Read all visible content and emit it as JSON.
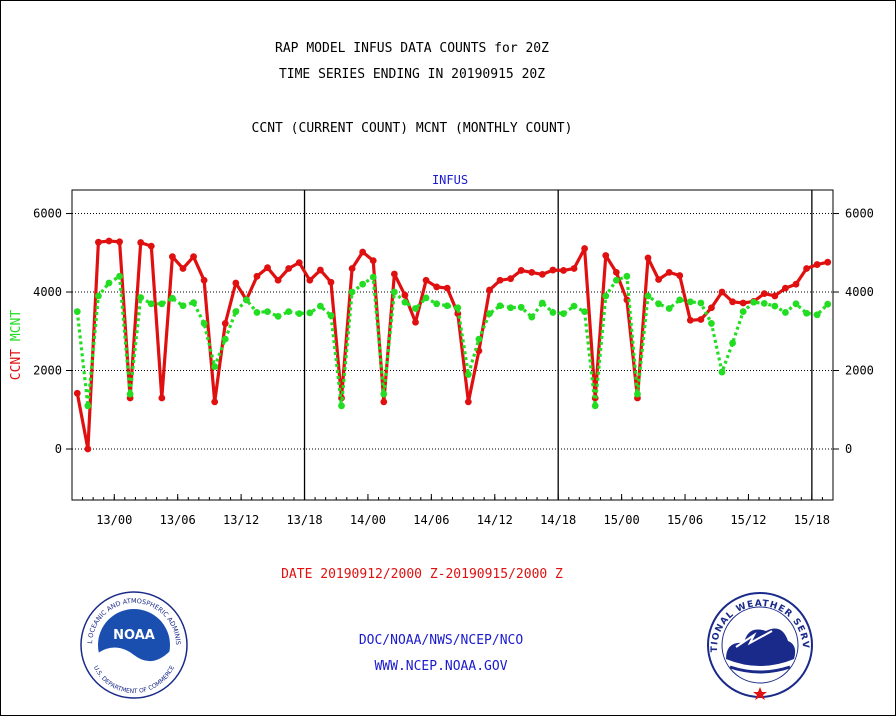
{
  "chart_data": {
    "type": "line",
    "title_lines": [
      "RAP MODEL INFUS DATA COUNTS for 20Z",
      "TIME SERIES ENDING IN 20190915 20Z"
    ],
    "subtitle": "CCNT (CURRENT COUNT) MCNT (MONTHLY COUNT)",
    "panel_label": "INFUS",
    "ylabel_parts": [
      {
        "text": "CCNT",
        "color": "#e01010"
      },
      {
        "text": "MCNT",
        "color": "#22dd22"
      }
    ],
    "xlabel": "DATE 20190912/2000 Z-20190915/2000 Z",
    "x_tick_labels": [
      "13/00",
      "13/06",
      "13/12",
      "13/18",
      "14/00",
      "14/06",
      "14/12",
      "14/18",
      "15/00",
      "15/06",
      "15/12",
      "15/18"
    ],
    "x_tick_hours": [
      4,
      10,
      16,
      22,
      28,
      34,
      40,
      46,
      52,
      58,
      64,
      70
    ],
    "day_boundary_hours": [
      22,
      46,
      70
    ],
    "x_range_hours": [
      0,
      72
    ],
    "y_ticks": [
      0,
      2000,
      4000,
      6000
    ],
    "y_tick_labels": [
      "0",
      "2000",
      "4000",
      "6000"
    ],
    "ylim": [
      -1300,
      6600
    ],
    "grid": "dotted horizontal at y ticks",
    "series": [
      {
        "name": "CCNT",
        "color": "#e01010",
        "style": "solid",
        "values": [
          1420,
          0,
          5270,
          5300,
          5280,
          1300,
          5260,
          5170,
          1300,
          4900,
          4600,
          4900,
          4300,
          1200,
          3200,
          4230,
          3800,
          4400,
          4620,
          4300,
          4600,
          4750,
          4300,
          4560,
          4250,
          1300,
          4600,
          5020,
          4800,
          1200,
          4460,
          3920,
          3230,
          4300,
          4130,
          4100,
          3450,
          1200,
          2500,
          4050,
          4300,
          4340,
          4550,
          4500,
          4450,
          4560,
          4550,
          4600,
          5110,
          1300,
          4930,
          4500,
          3800,
          1300,
          4870,
          4320,
          4500,
          4420,
          3280,
          3300,
          3600,
          4000,
          3750,
          3720,
          3760,
          3960,
          3900,
          4100,
          4200,
          4600,
          4700,
          4760
        ]
      },
      {
        "name": "MCNT",
        "color": "#22dd22",
        "style": "dotted",
        "values": [
          3500,
          1100,
          3900,
          4230,
          4400,
          1400,
          3860,
          3700,
          3700,
          3840,
          3650,
          3730,
          3200,
          2100,
          2800,
          3500,
          3800,
          3480,
          3500,
          3380,
          3500,
          3450,
          3470,
          3640,
          3400,
          1100,
          4000,
          4200,
          4380,
          1400,
          4000,
          3740,
          3580,
          3850,
          3700,
          3650,
          3600,
          1900,
          2800,
          3450,
          3650,
          3600,
          3610,
          3360,
          3720,
          3480,
          3450,
          3640,
          3500,
          1100,
          3900,
          4300,
          4400,
          1400,
          3900,
          3700,
          3580,
          3800,
          3750,
          3720,
          3200,
          1960,
          2700,
          3500,
          3740,
          3710,
          3640,
          3480,
          3700,
          3460,
          3420,
          3690
        ]
      }
    ]
  },
  "footer": {
    "line1": "DOC/NOAA/NWS/NCEP/NCO",
    "line2": "WWW.NCEP.NOAA.GOV"
  },
  "logos": {
    "left_name": "NOAA",
    "left_ring": "NATIONAL OCEANIC AND ATMOSPHERIC ADMINISTRATION",
    "left_ring_bottom": "U.S. DEPARTMENT OF COMMERCE",
    "right_ring": "NATIONAL WEATHER SERVICE"
  }
}
